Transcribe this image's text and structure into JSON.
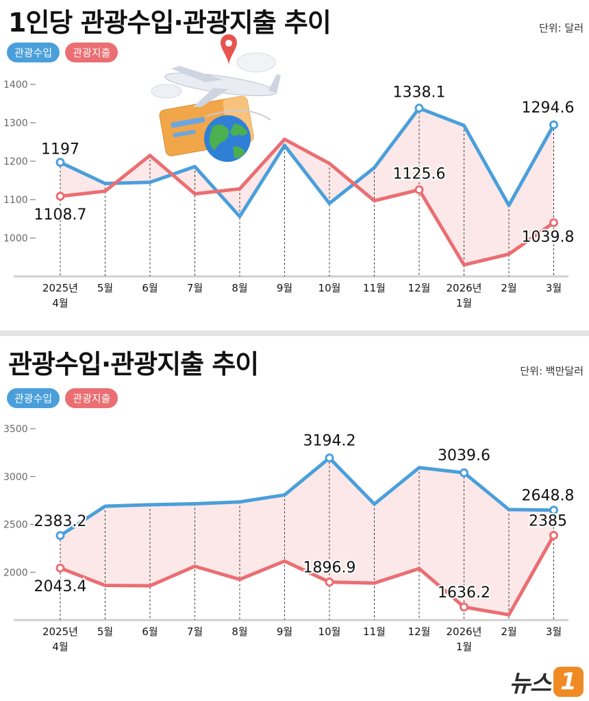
{
  "chart_data": [
    {
      "type": "line",
      "title": "1인당 관광수입·관광지출 추이",
      "unit": "단위: 달러",
      "categories": [
        [
          "2025년",
          "4월"
        ],
        [
          "5월"
        ],
        [
          "6월"
        ],
        [
          "7월"
        ],
        [
          "8월"
        ],
        [
          "9월"
        ],
        [
          "10월"
        ],
        [
          "11월"
        ],
        [
          "12월"
        ],
        [
          "2026년",
          "1월"
        ],
        [
          "2월"
        ],
        [
          "3월"
        ]
      ],
      "yticks": [
        1400,
        1300,
        1200,
        1100,
        1000
      ],
      "ylim": [
        900,
        1400
      ],
      "series": [
        {
          "name": "관광수입",
          "color": "#4a9fdb",
          "values": [
            1197,
            1142,
            1145,
            1186,
            1056,
            1241,
            1090,
            1183,
            1338.1,
            1293,
            1085,
            1294.6
          ]
        },
        {
          "name": "관광지출",
          "color": "#ea6e72",
          "values": [
            1108.7,
            1122,
            1215,
            1115,
            1128,
            1257,
            1194,
            1097,
            1125.6,
            930,
            958,
            1039.8
          ]
        }
      ],
      "data_labels": [
        {
          "series": 0,
          "index": 0,
          "text": "1197"
        },
        {
          "series": 1,
          "index": 0,
          "text": "1108.7"
        },
        {
          "series": 0,
          "index": 8,
          "text": "1338.1"
        },
        {
          "series": 1,
          "index": 8,
          "text": "1125.6"
        },
        {
          "series": 0,
          "index": 11,
          "text": "1294.6"
        },
        {
          "series": 1,
          "index": 11,
          "text": "1039.8"
        }
      ]
    },
    {
      "type": "line",
      "title": "관광수입·관광지출 추이",
      "unit": "단위: 백만달러",
      "categories": [
        [
          "2025년",
          "4월"
        ],
        [
          "5월"
        ],
        [
          "6월"
        ],
        [
          "7월"
        ],
        [
          "8월"
        ],
        [
          "9월"
        ],
        [
          "10월"
        ],
        [
          "11월"
        ],
        [
          "12월"
        ],
        [
          "2026년",
          "1월"
        ],
        [
          "2월"
        ],
        [
          "3월"
        ]
      ],
      "yticks": [
        3500,
        3000,
        2500,
        2000
      ],
      "ylim": [
        1500,
        3500
      ],
      "series": [
        {
          "name": "관광수입",
          "color": "#4a9fdb",
          "values": [
            2383.2,
            2690,
            2705,
            2715,
            2735,
            2808,
            3194.2,
            2712,
            3093,
            3039.6,
            2655,
            2648.8
          ]
        },
        {
          "name": "관광지출",
          "color": "#ea6e72",
          "values": [
            2043.4,
            1862,
            1858,
            2062,
            1925,
            2116,
            1896.9,
            1886,
            2038,
            1636.2,
            1555,
            2385
          ]
        }
      ],
      "data_labels": [
        {
          "series": 0,
          "index": 0,
          "text": "2383.2"
        },
        {
          "series": 1,
          "index": 0,
          "text": "2043.4"
        },
        {
          "series": 0,
          "index": 6,
          "text": "3194.2"
        },
        {
          "series": 1,
          "index": 6,
          "text": "1896.9"
        },
        {
          "series": 0,
          "index": 9,
          "text": "3039.6"
        },
        {
          "series": 1,
          "index": 9,
          "text": "1636.2"
        },
        {
          "series": 0,
          "index": 11,
          "text": "2648.8"
        },
        {
          "series": 1,
          "index": 11,
          "text": "2385"
        }
      ]
    }
  ],
  "legend": {
    "income": "관광수입",
    "spend": "관광지출"
  },
  "logo": {
    "text": "뉴스",
    "badge": "1"
  }
}
